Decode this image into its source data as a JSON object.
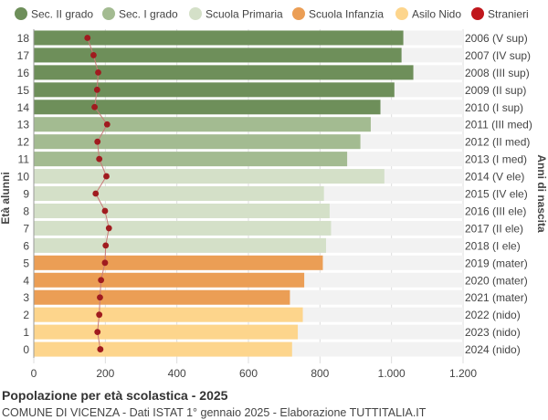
{
  "chart_data": {
    "type": "bar",
    "orientation": "horizontal",
    "title": "Popolazione per età scolastica - 2025",
    "subtitle": "COMUNE DI VICENZA - Dati ISTAT 1° gennaio 2025 - Elaborazione TUTTITALIA.IT",
    "ylabel_left": "Età alunni",
    "ylabel_right": "Anni di nascita",
    "xlim": [
      0,
      1200
    ],
    "xticks": [
      "0",
      "200",
      "400",
      "600",
      "800",
      "1.000",
      "1.200"
    ],
    "grid": true,
    "legend_position": "top",
    "legend": [
      {
        "name": "Sec. II grado",
        "color": "#6e8f5a"
      },
      {
        "name": "Sec. I grado",
        "color": "#a3bb91"
      },
      {
        "name": "Scuola Primaria",
        "color": "#d4e0c8"
      },
      {
        "name": "Scuola Infanzia",
        "color": "#eb9e55"
      },
      {
        "name": "Asilo Nido",
        "color": "#fdd58c"
      },
      {
        "name": "Stranieri",
        "color": "#c0171c"
      }
    ],
    "rows": [
      {
        "age": "18",
        "year": "2006 (V sup)",
        "value": 1033,
        "stranieri": 150,
        "group": 0
      },
      {
        "age": "17",
        "year": "2007 (IV sup)",
        "value": 1028,
        "stranieri": 167,
        "group": 0
      },
      {
        "age": "16",
        "year": "2008 (III sup)",
        "value": 1061,
        "stranieri": 180,
        "group": 0
      },
      {
        "age": "15",
        "year": "2009 (II sup)",
        "value": 1008,
        "stranieri": 177,
        "group": 0
      },
      {
        "age": "14",
        "year": "2010 (I sup)",
        "value": 969,
        "stranieri": 170,
        "group": 0
      },
      {
        "age": "13",
        "year": "2011 (III med)",
        "value": 942,
        "stranieri": 205,
        "group": 1
      },
      {
        "age": "12",
        "year": "2012 (II med)",
        "value": 913,
        "stranieri": 178,
        "group": 1
      },
      {
        "age": "11",
        "year": "2013 (I med)",
        "value": 876,
        "stranieri": 183,
        "group": 1
      },
      {
        "age": "10",
        "year": "2014 (V ele)",
        "value": 980,
        "stranieri": 203,
        "group": 2
      },
      {
        "age": "9",
        "year": "2015 (IV ele)",
        "value": 811,
        "stranieri": 173,
        "group": 2
      },
      {
        "age": "8",
        "year": "2016 (III ele)",
        "value": 827,
        "stranieri": 199,
        "group": 2
      },
      {
        "age": "7",
        "year": "2017 (II ele)",
        "value": 831,
        "stranieri": 210,
        "group": 2
      },
      {
        "age": "6",
        "year": "2018 (I ele)",
        "value": 817,
        "stranieri": 201,
        "group": 2
      },
      {
        "age": "5",
        "year": "2019 (mater)",
        "value": 808,
        "stranieri": 199,
        "group": 3
      },
      {
        "age": "4",
        "year": "2020 (mater)",
        "value": 756,
        "stranieri": 188,
        "group": 3
      },
      {
        "age": "3",
        "year": "2021 (mater)",
        "value": 716,
        "stranieri": 185,
        "group": 3
      },
      {
        "age": "2",
        "year": "2022 (nido)",
        "value": 752,
        "stranieri": 183,
        "group": 4
      },
      {
        "age": "1",
        "year": "2023 (nido)",
        "value": 738,
        "stranieri": 178,
        "group": 4
      },
      {
        "age": "0",
        "year": "2024 (nido)",
        "value": 722,
        "stranieri": 186,
        "group": 4
      }
    ]
  }
}
